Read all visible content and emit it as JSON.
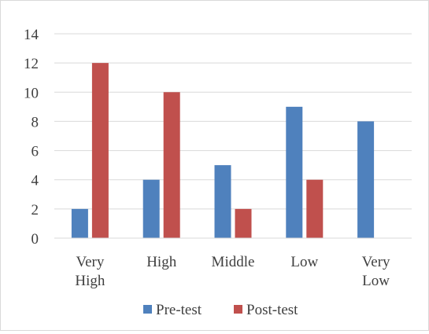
{
  "chart_data": {
    "type": "bar",
    "categories": [
      [
        "Very",
        "High"
      ],
      [
        "High"
      ],
      [
        "Middle"
      ],
      [
        "Low"
      ],
      [
        "Very",
        "Low"
      ]
    ],
    "series": [
      {
        "name": "Pre-test",
        "values": [
          2,
          4,
          5,
          9,
          8
        ],
        "color": "#4f81bd"
      },
      {
        "name": "Post-test",
        "values": [
          12,
          10,
          2,
          4,
          0
        ],
        "color": "#c0504d"
      }
    ],
    "ylim": [
      0,
      14
    ],
    "yticks": [
      0,
      2,
      4,
      6,
      8,
      10,
      12,
      14
    ],
    "grid": true,
    "legend_position": "bottom"
  }
}
